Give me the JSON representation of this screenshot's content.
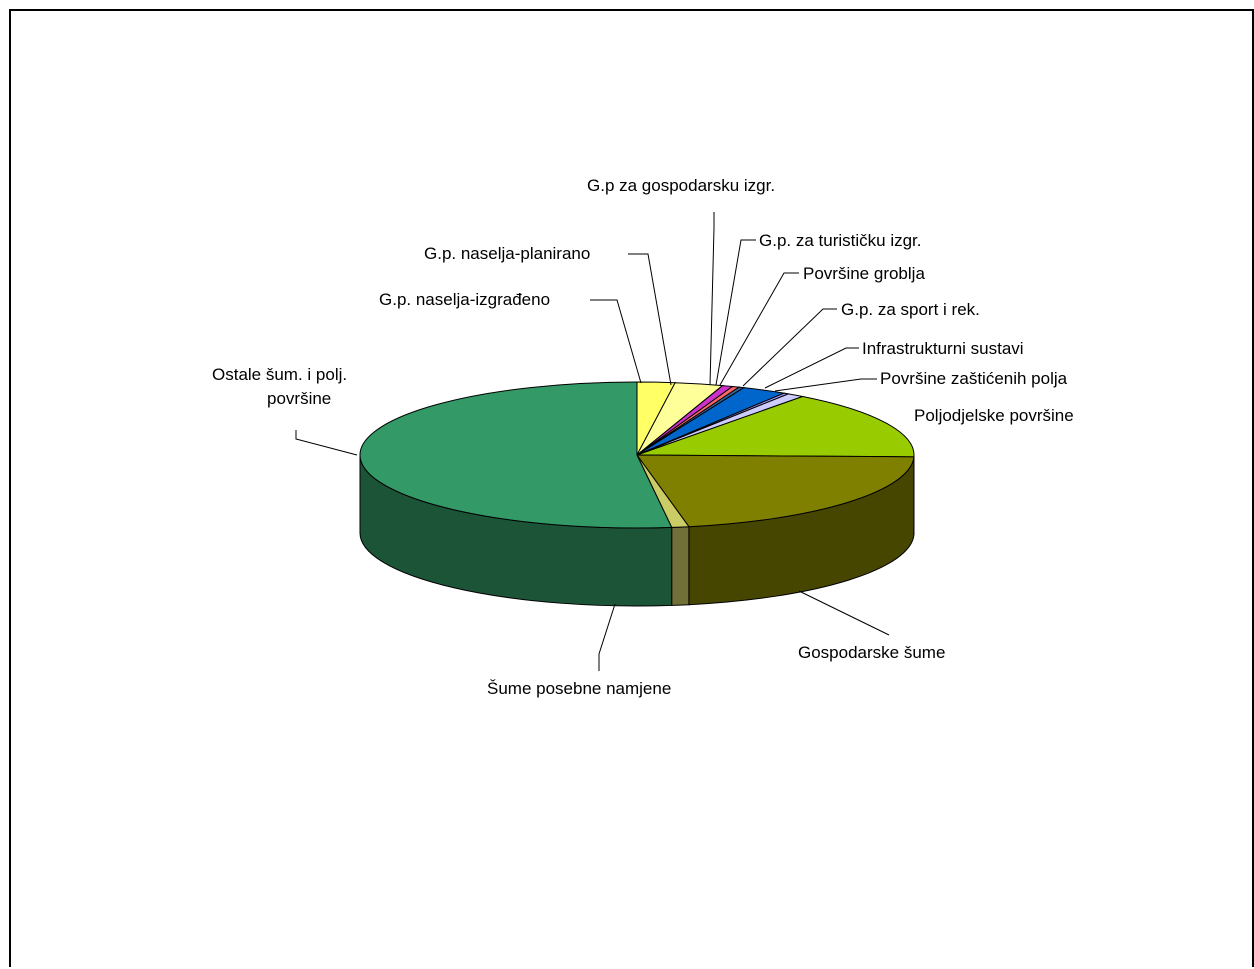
{
  "chart_data": {
    "type": "pie",
    "three_d": true,
    "legend": "none",
    "slices": [
      {
        "label": "G.p. naselja-izgrađeno",
        "value": 2.2,
        "color": "#FFFF66"
      },
      {
        "label": "G.p. naselja-planirano",
        "value": 2.8,
        "color": "#FFFF99"
      },
      {
        "label": "G.p za gospodarsku izgr.",
        "value": 0.6,
        "color": "#CC33CC"
      },
      {
        "label": "G.p. za turističku izgr.",
        "value": 0.4,
        "color": "#FF6666"
      },
      {
        "label": "Površine groblja",
        "value": 0.3,
        "color": "#336699"
      },
      {
        "label": "G.p. za sport i rek.",
        "value": 2.6,
        "color": "#0066CC"
      },
      {
        "label": "Infrastrukturni sustavi",
        "value": 0.3,
        "color": "#9999FF"
      },
      {
        "label": "Površine zaštićenih polja",
        "value": 1.0,
        "color": "#CCCCFF"
      },
      {
        "label": "Poljodjelske površine",
        "value": 15.2,
        "color": "#99CC00"
      },
      {
        "label": "Gospodarske šume",
        "value": 21.6,
        "color": "#808000"
      },
      {
        "label": "Šume posebne namjene",
        "value": 1.0,
        "color": "#CCCC66"
      },
      {
        "label": "Ostale šum. i polj. površine",
        "value": 52.0,
        "color": "#339966"
      }
    ]
  },
  "labels": {
    "gp_naselja_izgradeno": "G.p. naselja-izgrađeno",
    "gp_naselja_planirano": "G.p. naselja-planirano",
    "gp_gospodarsku_izgr": "G.p za gospodarsku izgr.",
    "gp_turisticku_izgr": "G.p. za turističku izgr.",
    "povrsine_groblja": "Površine groblja",
    "gp_sport_rek": "G.p. za sport i rek.",
    "infrastrukturni_sustavi": "Infrastrukturni sustavi",
    "povrsine_zasticenih_polja": "Površine zaštićenih polja",
    "poljodjelske_povrsine": "Poljodjelske površine",
    "gospodarske_sume": "Gospodarske šume",
    "sume_posebne_namjene": "Šume posebne namjene",
    "ostale_sum_line1": "Ostale šum. i polj.",
    "ostale_sum_line2": "površine"
  }
}
